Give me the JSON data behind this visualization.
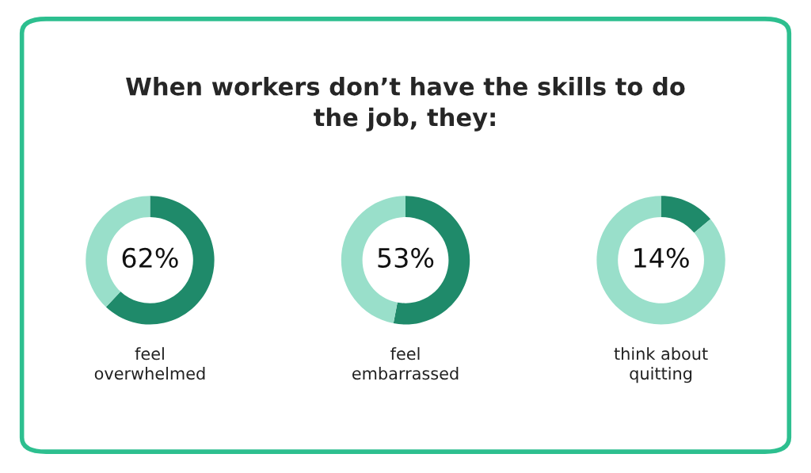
{
  "chart_data": [
    {
      "type": "donut",
      "title": "When workers don’t have the skills to do\nthe job, they:",
      "categories": [
        null,
        null
      ],
      "values": [
        62,
        38
      ],
      "colors": [
        "#1f8a6a",
        "#99dfca"
      ],
      "value_labels": [
        "62%",
        null
      ],
      "xlabel": "feel\noverwhelmed"
    },
    {
      "type": "donut",
      "categories": [
        null,
        null
      ],
      "values": [
        53,
        47
      ],
      "colors": [
        "#1f8a6a",
        "#99dfca"
      ],
      "value_labels": [
        "53%",
        null
      ],
      "xlabel": "feel\nembarrassed"
    },
    {
      "type": "donut",
      "categories": [
        null,
        null
      ],
      "values": [
        14,
        86
      ],
      "colors": [
        "#1f8a6a",
        "#99dfca"
      ],
      "value_labels": [
        "14%",
        null
      ],
      "xlabel": "think about\nquitting"
    }
  ]
}
